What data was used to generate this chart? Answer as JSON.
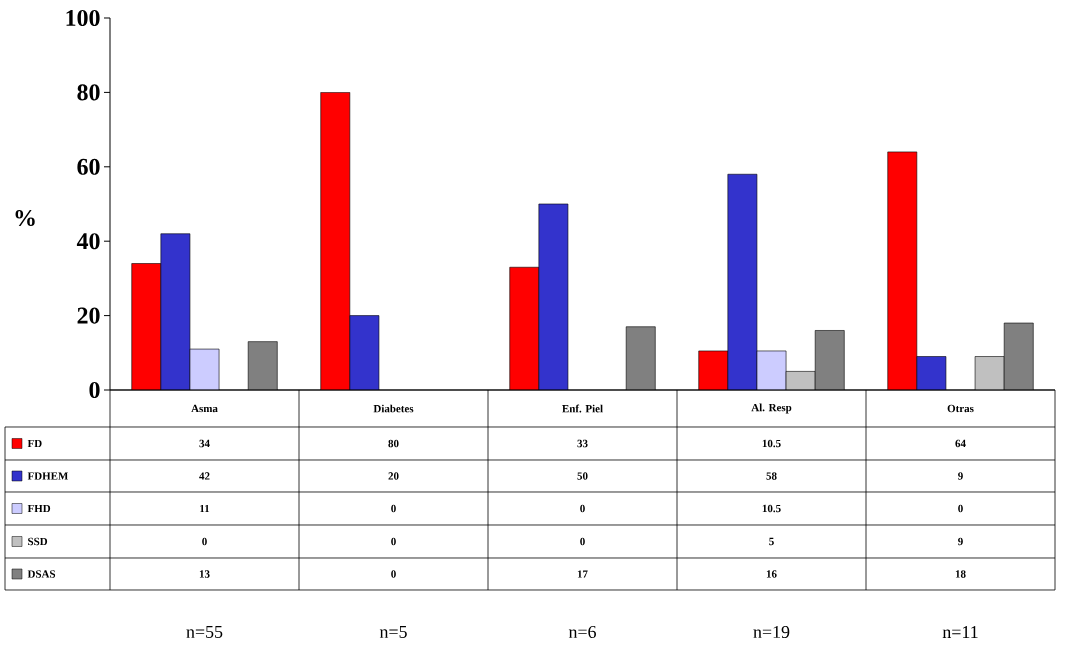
{
  "chart_data": {
    "type": "bar",
    "ylabel": "%",
    "categories": [
      "Asma",
      "Diabetes",
      "Enf. Piel",
      "Al. Resp",
      "Otras"
    ],
    "series": [
      {
        "name": "FD",
        "color": "#ff0000",
        "values": [
          34,
          80,
          33,
          10.5,
          64
        ]
      },
      {
        "name": "FDHEM",
        "color": "#3333cc",
        "values": [
          42,
          20,
          50,
          58,
          9
        ]
      },
      {
        "name": "FHD",
        "color": "#ccccff",
        "values": [
          11,
          0,
          0,
          10.5,
          0
        ]
      },
      {
        "name": "SSD",
        "color": "#c0c0c0",
        "values": [
          0,
          0,
          0,
          5,
          9
        ]
      },
      {
        "name": "DSAS",
        "color": "#808080",
        "values": [
          13,
          0,
          17,
          16,
          18
        ]
      }
    ],
    "ylim": [
      0,
      100
    ],
    "yticks": [
      0,
      20,
      40,
      60,
      80,
      100
    ],
    "data_labels": true,
    "legend": "left",
    "annotations": [
      "n=55",
      "n=5",
      "n=6",
      "n=19",
      "n=11"
    ]
  }
}
